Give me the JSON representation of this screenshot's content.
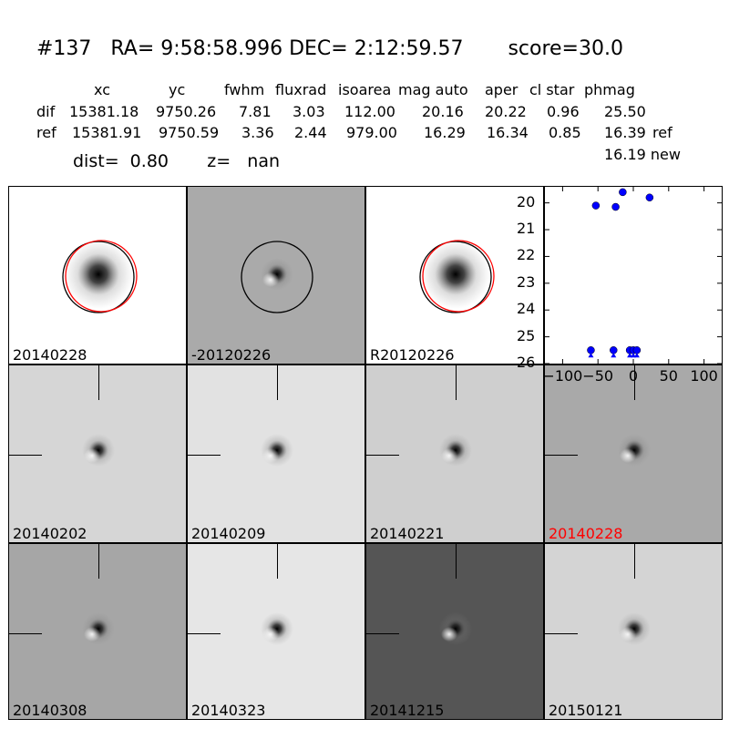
{
  "header": {
    "title": "#137   RA= 9:58:58.996 DEC= 2:12:59.57       score=30.0"
  },
  "table": {
    "columns": [
      "xc",
      "yc",
      "fwhm",
      "fluxrad",
      "isoarea",
      "mag auto",
      "aper",
      "cl star",
      "phmag"
    ],
    "rows": [
      {
        "label": "dif",
        "values": [
          "15381.18",
          "9750.26",
          "7.81",
          "3.03",
          "112.00",
          "20.16",
          "20.22",
          "0.96",
          "25.50"
        ],
        "extra": ""
      },
      {
        "label": "ref",
        "values": [
          "15381.91",
          "9750.59",
          "3.36",
          "2.44",
          "979.00",
          "16.29",
          "16.34",
          "0.85",
          "16.39"
        ],
        "extra": "ref"
      }
    ],
    "new_line": "16.19 new",
    "dist_text": "dist=  0.80       z=   nan"
  },
  "panels": [
    {
      "label": "20140228",
      "bg": "#ffffff",
      "circles": true,
      "highlight": false
    },
    {
      "label": "-20120226",
      "bg": "#aaaaaa",
      "circles": true,
      "highlight": false
    },
    {
      "label": "R20120226",
      "bg": "#ffffff",
      "circles": true,
      "highlight": false
    },
    {
      "label": "20140202",
      "bg": "#d6d6d6",
      "circles": false,
      "highlight": false
    },
    {
      "label": "20140209",
      "bg": "#e2e2e2",
      "circles": false,
      "highlight": false
    },
    {
      "label": "20140221",
      "bg": "#cfcfcf",
      "circles": false,
      "highlight": false
    },
    {
      "label": "20140228",
      "bg": "#a9a9a9",
      "circles": false,
      "highlight": true
    },
    {
      "label": "20140308",
      "bg": "#a6a6a6",
      "circles": false,
      "highlight": false
    },
    {
      "label": "20140323",
      "bg": "#e6e6e6",
      "circles": false,
      "highlight": false
    },
    {
      "label": "20141215",
      "bg": "#555555",
      "circles": false,
      "highlight": false
    },
    {
      "label": "20150121",
      "bg": "#d4d4d4",
      "circles": false,
      "highlight": false
    }
  ],
  "colors": {
    "highlight_label": "#ff0000",
    "point": "#0000ff",
    "red_circle": "#ff0000"
  },
  "chart_data": {
    "type": "scatter",
    "x": [
      -53,
      -15,
      -25,
      23,
      -60,
      -28,
      -5,
      0,
      5
    ],
    "y": [
      20.1,
      19.6,
      20.15,
      19.8,
      25.5,
      25.5,
      25.5,
      25.5,
      25.5
    ],
    "xlim": [
      -125,
      125
    ],
    "ylim": [
      26,
      19.4
    ],
    "xticks": [
      -100,
      -50,
      0,
      50,
      100
    ],
    "yticks": [
      20,
      21,
      22,
      23,
      24,
      25,
      26
    ],
    "xtick_labels": [
      "−100",
      "−50",
      "0",
      "50",
      "100"
    ],
    "ytick_labels": [
      "20",
      "21",
      "22",
      "23",
      "24",
      "25",
      "26"
    ],
    "title": "",
    "xlabel": "",
    "ylabel": ""
  }
}
